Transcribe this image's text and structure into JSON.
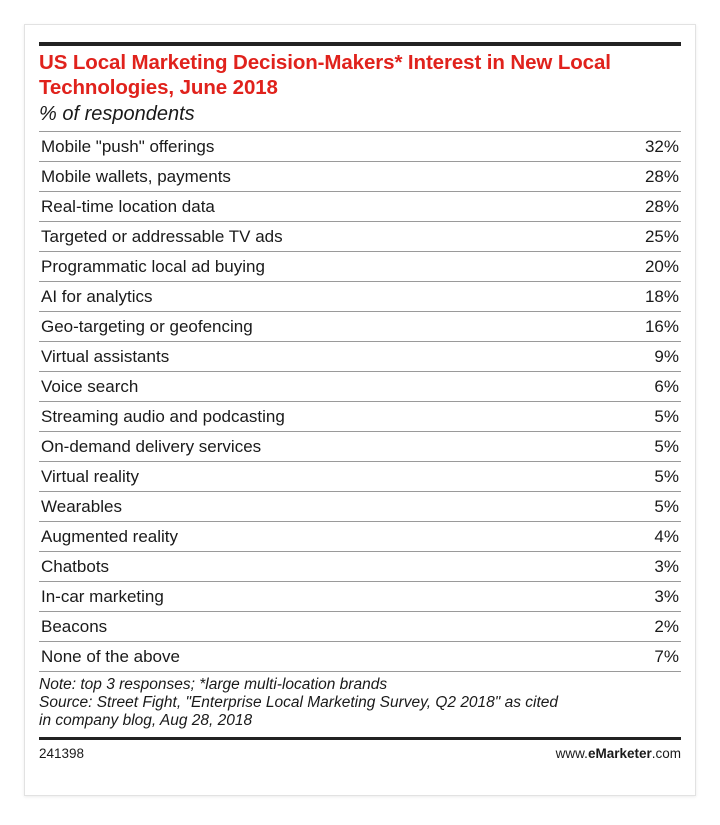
{
  "chart_data": {
    "type": "table",
    "title": "US Local Marketing Decision-Makers* Interest in New Local Technologies, June 2018",
    "subtitle": "% of respondents",
    "rows": [
      {
        "label": "Mobile \"push\" offerings",
        "value": "32%"
      },
      {
        "label": "Mobile wallets, payments",
        "value": "28%"
      },
      {
        "label": "Real-time location data",
        "value": "28%"
      },
      {
        "label": "Targeted or addressable TV ads",
        "value": "25%"
      },
      {
        "label": "Programmatic local ad buying",
        "value": "20%"
      },
      {
        "label": "AI for analytics",
        "value": "18%"
      },
      {
        "label": "Geo-targeting or geofencing",
        "value": "16%"
      },
      {
        "label": "Virtual assistants",
        "value": "9%"
      },
      {
        "label": "Voice search",
        "value": "6%"
      },
      {
        "label": "Streaming audio and podcasting",
        "value": "5%"
      },
      {
        "label": "On-demand delivery services",
        "value": "5%"
      },
      {
        "label": "Virtual reality",
        "value": "5%"
      },
      {
        "label": "Wearables",
        "value": "5%"
      },
      {
        "label": "Augmented reality",
        "value": "4%"
      },
      {
        "label": "Chatbots",
        "value": "3%"
      },
      {
        "label": "In-car marketing",
        "value": "3%"
      },
      {
        "label": "Beacons",
        "value": "2%"
      },
      {
        "label": "None of the above",
        "value": "7%"
      }
    ],
    "note_line1": "Note: top 3 responses; *large multi-location brands",
    "note_line2": "Source: Street Fight, \"Enterprise Local Marketing Survey, Q2 2018\" as cited",
    "note_line3": "in company blog, Aug 28, 2018",
    "chart_id": "241398",
    "brand_prefix": "www.",
    "brand_bold_e": "e",
    "brand_bold_rest": "Marketer",
    "brand_suffix": ".com"
  },
  "colors": {
    "title": "#e0221c",
    "text": "#1a1a1a",
    "rule": "#222222",
    "row_divider": "#9a9a9a"
  }
}
